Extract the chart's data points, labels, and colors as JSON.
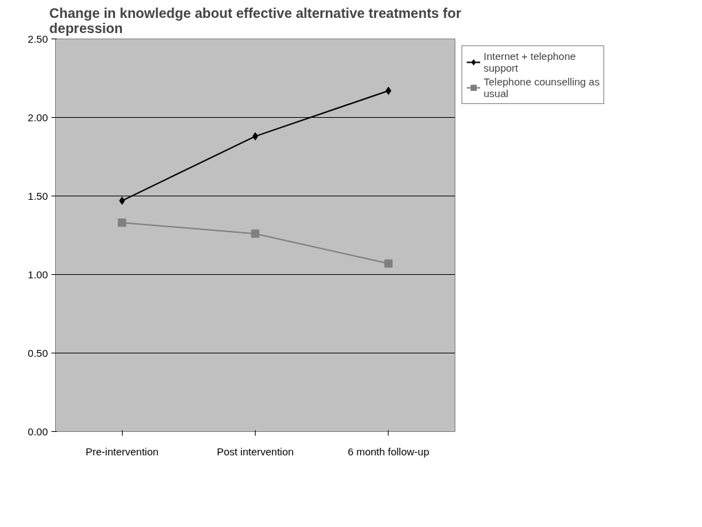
{
  "chart_data": {
    "type": "line",
    "title": "Change in knowledge about effective alternative treatments for depression",
    "categories": [
      "Pre-intervention",
      "Post intervention",
      "6 month follow-up"
    ],
    "series": [
      {
        "name": "Internet + telephone support",
        "color": "#000000",
        "marker": "diamond",
        "values": [
          1.47,
          1.88,
          2.17
        ]
      },
      {
        "name": "Telephone counselling as usual",
        "color": "#808080",
        "marker": "square",
        "values": [
          1.33,
          1.26,
          1.07
        ]
      }
    ],
    "ylim": [
      0,
      2.5
    ],
    "yticks": [
      {
        "value": 0,
        "label": "0.00"
      },
      {
        "value": 0.5,
        "label": "0.50"
      },
      {
        "value": 1,
        "label": "1.00"
      },
      {
        "value": 1.5,
        "label": "1.50"
      },
      {
        "value": 2,
        "label": "2.00"
      },
      {
        "value": 2.5,
        "label": "2.50"
      }
    ],
    "grid": "y",
    "legend": "right",
    "line_style": "solid"
  }
}
